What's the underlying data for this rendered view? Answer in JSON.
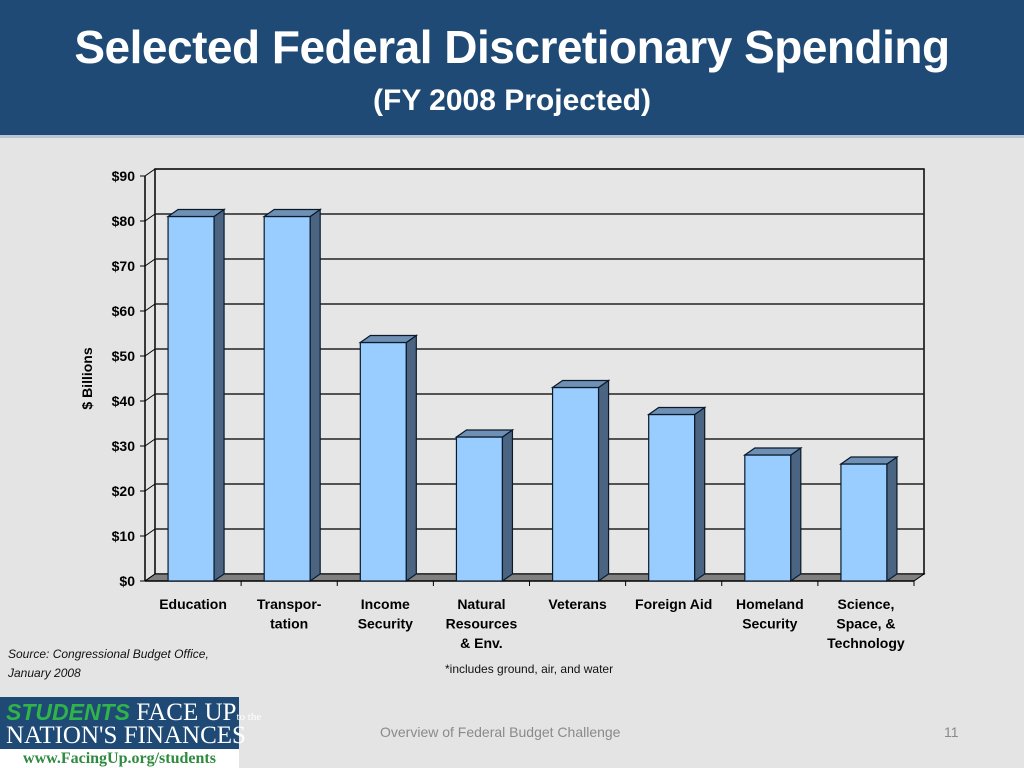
{
  "slide": {
    "title": "Selected Federal Discretionary Spending",
    "subtitle": "(FY 2008 Projected)",
    "source_line1": "Source: Congressional Budget Office,",
    "source_line2": "January 2008",
    "footnote": "*includes ground, air, and water",
    "footer_text": "Overview of Federal Budget Challenge",
    "page_number": "11"
  },
  "logo": {
    "students": "STUDENTS",
    "face_up": " FACE UP",
    "to_the": "to the",
    "line2": "NATION'S FINANCES",
    "url": "www.FacingUp.org/students"
  },
  "colors": {
    "header_bg": "#1f4a75",
    "bar_front": "#99ccff",
    "bar_side": "#4a6482",
    "bar_top": "#6f90b5",
    "floor": "#808080"
  },
  "chart_data": {
    "type": "bar",
    "style": "3d-column",
    "title": "Selected Federal Discretionary Spending",
    "subtitle": "(FY 2008 Projected)",
    "xlabel": "",
    "ylabel": "$ Billions",
    "ylim": [
      0,
      90
    ],
    "yticks": [
      0,
      10,
      20,
      30,
      40,
      50,
      60,
      70,
      80,
      90
    ],
    "ytick_labels": [
      "$0",
      "$10",
      "$20",
      "$30",
      "$40",
      "$50",
      "$60",
      "$70",
      "$80",
      "$90"
    ],
    "grid": true,
    "legend": "none",
    "categories": [
      [
        "Education"
      ],
      [
        "Transpor-",
        "tation"
      ],
      [
        "Income",
        "Security"
      ],
      [
        "Natural",
        "Resources",
        "& Env."
      ],
      [
        "Veterans"
      ],
      [
        "Foreign Aid"
      ],
      [
        "Homeland",
        "Security"
      ],
      [
        "Science,",
        "Space, &",
        "Technology"
      ]
    ],
    "values": [
      81,
      81,
      53,
      32,
      43,
      37,
      28,
      26
    ]
  }
}
